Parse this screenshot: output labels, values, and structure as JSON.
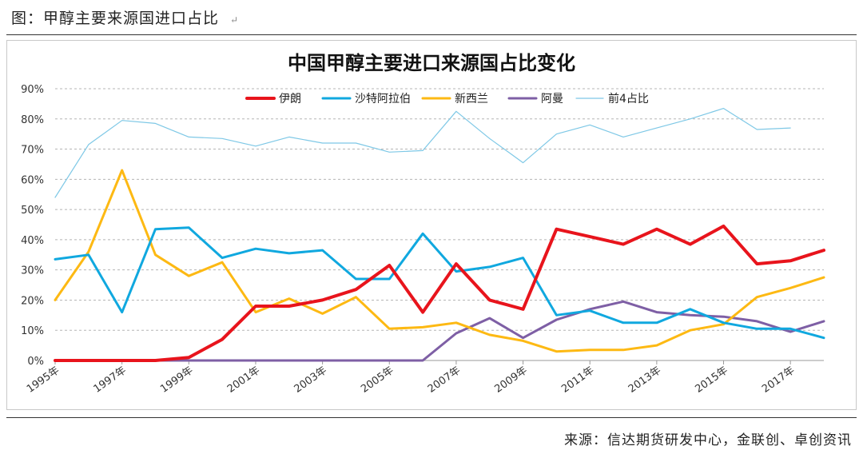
{
  "caption": {
    "text": "图：甲醇主要来源国进口占比",
    "mark": "↵"
  },
  "source": {
    "text": "来源：信达期货研发中心，金联创、卓创资讯"
  },
  "chart_data": {
    "type": "line",
    "title": "中国甲醇主要进口来源国占比变化",
    "xlabel": "",
    "ylabel": "",
    "ylim": [
      0,
      90
    ],
    "y_ticks": [
      "0%",
      "10%",
      "20%",
      "30%",
      "40%",
      "50%",
      "60%",
      "70%",
      "80%",
      "90%"
    ],
    "categories": [
      "1995年",
      "1996年",
      "1997年",
      "1998年",
      "1999年",
      "2000年",
      "2001年",
      "2002年",
      "2003年",
      "2004年",
      "2005年",
      "2006年",
      "2007年",
      "2008年",
      "2009年",
      "2010年",
      "2011年",
      "2012年",
      "2013年",
      "2014年",
      "2015年",
      "2016年",
      "2017年",
      "2018年"
    ],
    "x_tick_labels": [
      "1995年",
      "1997年",
      "1999年",
      "2001年",
      "2003年",
      "2005年",
      "2007年",
      "2009年",
      "2011年",
      "2013年",
      "2015年",
      "2017年"
    ],
    "grid": true,
    "legend_position": "top",
    "series": [
      {
        "name": "伊朗",
        "color": "#e8141c",
        "width": 4,
        "values": [
          0,
          0,
          0,
          0,
          1,
          7,
          18,
          18,
          20,
          23.5,
          31.5,
          16,
          32,
          20,
          17,
          43.5,
          41,
          38.5,
          43.5,
          38.5,
          44.5,
          32,
          33,
          36.5
        ]
      },
      {
        "name": "沙特阿拉伯",
        "color": "#10a8df",
        "width": 3,
        "values": [
          33.5,
          35,
          16,
          43.5,
          44,
          34,
          37,
          35.5,
          36.5,
          27,
          27,
          42,
          29.5,
          31,
          34,
          15,
          16.5,
          12.5,
          12.5,
          17,
          12.5,
          10.5,
          10.5,
          7.5
        ]
      },
      {
        "name": "新西兰",
        "color": "#fdb913",
        "width": 3,
        "values": [
          20,
          36,
          63,
          35,
          28,
          32.5,
          16,
          20.5,
          15.5,
          21,
          10.5,
          11,
          12.5,
          8.5,
          6.5,
          3,
          3.5,
          3.5,
          5,
          10,
          12,
          21,
          24,
          27.5
        ]
      },
      {
        "name": "阿曼",
        "color": "#7e5fa5",
        "width": 3,
        "values": [
          0,
          0,
          0,
          0,
          0,
          0,
          0,
          0,
          0,
          0,
          0,
          0,
          9,
          14,
          7.5,
          13.5,
          17,
          19.5,
          16,
          15,
          14.5,
          13,
          9.5,
          13
        ]
      },
      {
        "name": "前4占比",
        "color": "#7ec8e6",
        "width": 1.2,
        "values": [
          54,
          71.5,
          79.5,
          78.5,
          74,
          73.5,
          71,
          74,
          72,
          72,
          69,
          69.5,
          82.5,
          73.5,
          65.5,
          75,
          78,
          74,
          77,
          80,
          83.5,
          76.5,
          77,
          null
        ]
      }
    ]
  }
}
